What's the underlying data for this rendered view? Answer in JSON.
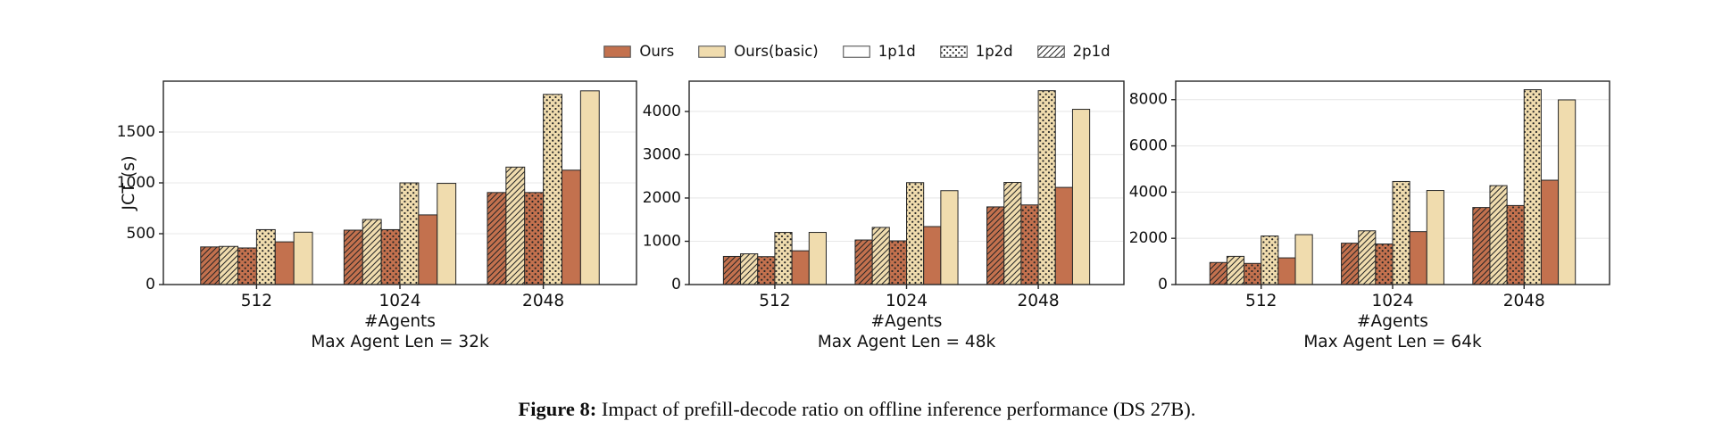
{
  "figure": {
    "caption_label": "Figure 8:",
    "caption_text": " Impact of prefill-decode ratio on offline inference performance (DS 27B)."
  },
  "colors": {
    "ours": "#C3714E",
    "basic": "#F0DCAE",
    "white": "#FFFFFF",
    "edge": "#262626",
    "grid": "#E8E8E8",
    "axis": "#262626",
    "text": "#111111"
  },
  "legend": {
    "items": [
      {
        "label": "Ours",
        "color": "ours",
        "pattern": "none"
      },
      {
        "label": "Ours(basic)",
        "color": "basic",
        "pattern": "none"
      },
      {
        "label": "1p1d",
        "color": "white",
        "pattern": "none"
      },
      {
        "label": "1p2d",
        "color": "white",
        "pattern": "dots"
      },
      {
        "label": "2p1d",
        "color": "white",
        "pattern": "hatch"
      }
    ]
  },
  "chart_data": [
    {
      "type": "bar",
      "ylabel": "JCT (s)",
      "xlabel": "#Agents",
      "subtitle": "Max Agent Len = 32k",
      "categories": [
        "512",
        "1024",
        "2048"
      ],
      "yticks": [
        0,
        500,
        1000,
        1500
      ],
      "ylim": [
        0,
        2000
      ],
      "grid": true,
      "legend_position": "top-shared",
      "series": [
        {
          "name": "Ours 2p1d",
          "color": "ours",
          "pattern": "hatch",
          "values": [
            370,
            535,
            905
          ]
        },
        {
          "name": "Ours(basic) 2p1d",
          "color": "basic",
          "pattern": "hatch",
          "values": [
            375,
            640,
            1155
          ]
        },
        {
          "name": "Ours 1p2d",
          "color": "ours",
          "pattern": "dots",
          "values": [
            360,
            540,
            905
          ]
        },
        {
          "name": "Ours(basic) 1p2d",
          "color": "basic",
          "pattern": "dots",
          "values": [
            540,
            1000,
            1870
          ]
        },
        {
          "name": "Ours 1p1d",
          "color": "ours",
          "pattern": "none",
          "values": [
            420,
            685,
            1125
          ]
        },
        {
          "name": "Ours(basic) 1p1d",
          "color": "basic",
          "pattern": "none",
          "values": [
            515,
            995,
            1905
          ]
        }
      ]
    },
    {
      "type": "bar",
      "ylabel": "",
      "xlabel": "#Agents",
      "subtitle": "Max Agent Len = 48k",
      "categories": [
        "512",
        "1024",
        "2048"
      ],
      "yticks": [
        0,
        1000,
        2000,
        3000,
        4000
      ],
      "ylim": [
        0,
        4700
      ],
      "grid": true,
      "legend_position": "top-shared",
      "series": [
        {
          "name": "Ours 2p1d",
          "color": "ours",
          "pattern": "hatch",
          "values": [
            650,
            1030,
            1795
          ]
        },
        {
          "name": "Ours(basic) 2p1d",
          "color": "basic",
          "pattern": "hatch",
          "values": [
            710,
            1320,
            2360
          ]
        },
        {
          "name": "Ours 1p2d",
          "color": "ours",
          "pattern": "dots",
          "values": [
            645,
            1010,
            1840
          ]
        },
        {
          "name": "Ours(basic) 1p2d",
          "color": "basic",
          "pattern": "dots",
          "values": [
            1205,
            2355,
            4480
          ]
        },
        {
          "name": "Ours 1p1d",
          "color": "ours",
          "pattern": "none",
          "values": [
            780,
            1340,
            2245
          ]
        },
        {
          "name": "Ours(basic) 1p1d",
          "color": "basic",
          "pattern": "none",
          "values": [
            1205,
            2170,
            4050
          ]
        }
      ]
    },
    {
      "type": "bar",
      "ylabel": "",
      "xlabel": "#Agents",
      "subtitle": "Max Agent Len = 64k",
      "categories": [
        "512",
        "1024",
        "2048"
      ],
      "yticks": [
        0,
        2000,
        4000,
        6000,
        8000
      ],
      "ylim": [
        0,
        8800
      ],
      "grid": true,
      "legend_position": "top-shared",
      "series": [
        {
          "name": "Ours 2p1d",
          "color": "ours",
          "pattern": "hatch",
          "values": [
            955,
            1790,
            3335
          ]
        },
        {
          "name": "Ours(basic) 2p1d",
          "color": "basic",
          "pattern": "hatch",
          "values": [
            1220,
            2325,
            4280
          ]
        },
        {
          "name": "Ours 1p2d",
          "color": "ours",
          "pattern": "dots",
          "values": [
            915,
            1755,
            3420
          ]
        },
        {
          "name": "Ours(basic) 1p2d",
          "color": "basic",
          "pattern": "dots",
          "values": [
            2100,
            4460,
            8430
          ]
        },
        {
          "name": "Ours 1p1d",
          "color": "ours",
          "pattern": "none",
          "values": [
            1155,
            2290,
            4515
          ]
        },
        {
          "name": "Ours(basic) 1p1d",
          "color": "basic",
          "pattern": "none",
          "values": [
            2160,
            4070,
            7990
          ]
        }
      ]
    }
  ]
}
